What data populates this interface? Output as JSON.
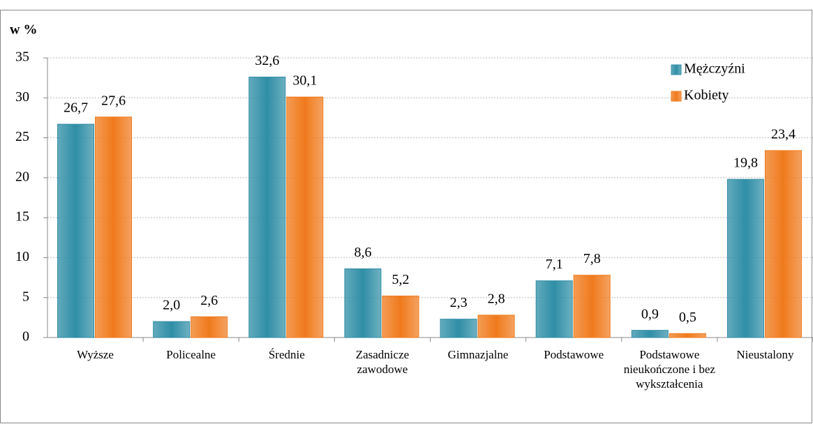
{
  "chart_data": {
    "type": "bar",
    "y_axis_label": "w %",
    "categories": [
      "Wyższe",
      "Policealne",
      "Średnie",
      "Zasadnicze zawodowe",
      "Gimnazjalne",
      "Podstawowe",
      "Podstawowe nieukończone i bez wykształcenia",
      "Nieustalony"
    ],
    "series": [
      {
        "name": "Mężczyźni",
        "color": "#2f8ea6",
        "values": [
          26.7,
          2.0,
          32.6,
          8.6,
          2.3,
          7.1,
          0.9,
          19.8
        ],
        "value_labels": [
          "26,7",
          "2,0",
          "32,6",
          "8,6",
          "2,3",
          "7,1",
          "0,9",
          "19,8"
        ]
      },
      {
        "name": "Kobiety",
        "color": "#f07a1c",
        "values": [
          27.6,
          2.6,
          30.1,
          5.2,
          2.8,
          7.8,
          0.5,
          23.4
        ],
        "value_labels": [
          "27,6",
          "2,6",
          "30,1",
          "5,2",
          "2,8",
          "7,8",
          "0,5",
          "23,4"
        ]
      }
    ],
    "ylim": [
      0,
      35
    ],
    "yticks": [
      0,
      5,
      10,
      15,
      20,
      25,
      30,
      35
    ],
    "grid": true,
    "legend": "top-right"
  }
}
